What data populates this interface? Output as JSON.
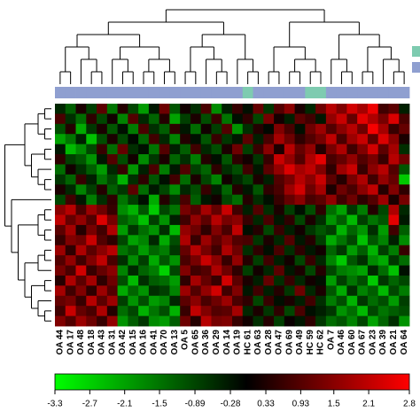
{
  "chart_data": {
    "type": "heatmap",
    "columns": [
      "OA 44",
      "OA 17",
      "OA 48",
      "OA 18",
      "OA 43",
      "OA 31",
      "OA 42",
      "OA 15",
      "OA 16",
      "OA 41",
      "OA 70",
      "OA 13",
      "OA 5",
      "OA 65",
      "OA 36",
      "OA 29",
      "OA 14",
      "OA 19",
      "HC 61",
      "OA 63",
      "OA 28",
      "OA 47",
      "OA 69",
      "OA 49",
      "HC 59",
      "HC 62",
      "OA 7",
      "OA 46",
      "OA 60",
      "OA 67",
      "OA 23",
      "OA 39",
      "OA 21",
      "OA 64"
    ],
    "annotation_colors": [
      "#8f9fd0",
      "#8f9fd0",
      "#8f9fd0",
      "#8f9fd0",
      "#8f9fd0",
      "#8f9fd0",
      "#8f9fd0",
      "#8f9fd0",
      "#8f9fd0",
      "#8f9fd0",
      "#8f9fd0",
      "#8f9fd0",
      "#8f9fd0",
      "#8f9fd0",
      "#8f9fd0",
      "#8f9fd0",
      "#8f9fd0",
      "#8f9fd0",
      "#7ecbb0",
      "#8f9fd0",
      "#8f9fd0",
      "#8f9fd0",
      "#8f9fd0",
      "#8f9fd0",
      "#7ecbb0",
      "#7ecbb0",
      "#8f9fd0",
      "#8f9fd0",
      "#8f9fd0",
      "#8f9fd0",
      "#8f9fd0",
      "#8f9fd0",
      "#8f9fd0",
      "#8f9fd0"
    ],
    "legend_colors": [
      "#7ecbb0",
      "#8f9fd0"
    ],
    "colormap": {
      "low": "#00ff00",
      "mid": "#000000",
      "high": "#ff0000"
    },
    "zlim": [
      -3.3,
      2.8
    ],
    "zticks": [
      -3.3,
      -2.7,
      -2.1,
      -1.5,
      -0.89,
      -0.28,
      0.33,
      0.93,
      1.5,
      2.1,
      2.8
    ],
    "values": [
      [
        -0.5,
        -1.2,
        0.3,
        -0.8,
        1.0,
        -1.5,
        0.4,
        -0.9,
        -2.0,
        -0.3,
        1.2,
        -1.1,
        0.2,
        -0.6,
        0.8,
        -1.8,
        -0.4,
        0.6,
        -0.2,
        1.1,
        -0.7,
        0.9,
        1.5,
        0.3,
        -0.5,
        1.2,
        2.0,
        1.4,
        2.3,
        1.8,
        2.6,
        0.7,
        1.0,
        -0.4
      ],
      [
        0.8,
        -0.6,
        -1.4,
        0.5,
        -0.9,
        0.2,
        -1.7,
        0.9,
        -0.5,
        -1.3,
        0.4,
        -2.1,
        -0.8,
        0.3,
        -1.0,
        0.6,
        -1.5,
        -0.2,
        0.5,
        -0.9,
        1.3,
        0.2,
        -0.4,
        1.0,
        0.7,
        -0.3,
        1.6,
        2.2,
        1.1,
        2.5,
        1.9,
        1.3,
        2.4,
        0.8
      ],
      [
        -1.0,
        0.4,
        -2.2,
        -0.7,
        0.3,
        -1.1,
        -0.2,
        -1.6,
        0.8,
        -0.6,
        -1.2,
        0.5,
        -0.3,
        -1.4,
        0.2,
        -0.8,
        0.9,
        -1.9,
        -0.6,
        0.4,
        -0.1,
        1.4,
        0.8,
        -0.2,
        1.2,
        1.7,
        0.9,
        1.5,
        2.0,
        1.2,
        2.7,
        1.8,
        0.6,
        1.1
      ],
      [
        -2.1,
        -1.5,
        -0.4,
        -2.5,
        -1.0,
        0.3,
        -0.9,
        -0.1,
        -1.3,
        0.7,
        -0.5,
        -1.7,
        0.4,
        -0.2,
        -1.1,
        0.6,
        -0.7,
        -0.3,
        1.0,
        -0.4,
        0.8,
        1.8,
        1.2,
        0.5,
        0.9,
        1.3,
        2.1,
        0.8,
        1.7,
        2.2,
        1.0,
        2.4,
        1.5,
        0.3
      ],
      [
        -0.3,
        -2.4,
        -1.8,
        -0.9,
        0.6,
        -1.4,
        1.1,
        -0.6,
        -0.2,
        -1.5,
        0.9,
        -0.4,
        -1.2,
        0.7,
        -0.5,
        -1.0,
        0.3,
        1.2,
        -0.8,
        0.6,
        1.5,
        0.3,
        2.0,
        1.1,
        1.6,
        0.4,
        1.3,
        1.9,
        0.7,
        1.4,
        2.3,
        1.0,
        1.8,
        -0.6
      ],
      [
        0.5,
        -0.8,
        -1.1,
        -1.9,
        -0.3,
        0.9,
        -1.0,
        0.2,
        -1.8,
        -0.7,
        0.3,
        -1.3,
        -0.6,
        -1.6,
        0.4,
        -0.2,
        -1.1,
        0.5,
        0.2,
        -0.7,
        0.6,
        2.2,
        1.6,
        0.9,
        1.9,
        2.5,
        0.8,
        1.1,
        1.6,
        0.9,
        1.3,
        0.6,
        2.0,
        1.2
      ],
      [
        -1.4,
        0.2,
        -0.6,
        -1.2,
        -2.0,
        -0.5,
        0.6,
        -1.9,
        -0.4,
        0.8,
        -1.6,
        -0.3,
        0.9,
        -0.8,
        -1.3,
        0.5,
        -0.6,
        -1.0,
        0.7,
        -0.3,
        1.0,
        1.6,
        2.4,
        1.8,
        2.1,
        1.4,
        0.5,
        1.7,
        2.2,
        0.6,
        1.5,
        2.0,
        0.9,
        -1.1
      ],
      [
        -0.7,
        -1.3,
        0.6,
        -0.4,
        -1.5,
        -0.9,
        -2.3,
        -0.6,
        0.5,
        -1.1,
        -0.2,
        0.7,
        -1.4,
        0.3,
        -0.9,
        -1.7,
        0.2,
        -0.5,
        -0.9,
        0.3,
        -0.4,
        0.9,
        1.3,
        2.0,
        1.5,
        2.2,
        1.0,
        0.4,
        1.3,
        1.9,
        0.7,
        1.6,
        1.1,
        -2.6
      ],
      [
        0.3,
        -0.5,
        -1.7,
        -0.8,
        0.4,
        -1.2,
        -0.7,
        1.0,
        -1.4,
        -0.3,
        -0.9,
        -1.8,
        -0.5,
        -1.0,
        0.6,
        -0.4,
        -1.3,
        0.4,
        -0.3,
        -1.1,
        0.5,
        0.8,
        1.7,
        2.3,
        1.2,
        1.8,
        0.3,
        1.2,
        0.8,
        1.5,
        2.1,
        0.4,
        1.4,
        0.5
      ],
      [
        -0.9,
        0.7,
        -0.3,
        -1.6,
        -0.6,
        0.5,
        -1.5,
        -0.8,
        -0.2,
        -2.2,
        0.4,
        -0.7,
        0.8,
        -1.2,
        -0.3,
        0.2,
        -0.9,
        -1.4,
        0.4,
        -0.6,
        -0.2,
        0.6,
        1.1,
        1.5,
        0.8,
        1.0,
        1.6,
        0.7,
        1.2,
        0.5,
        0.9,
        1.7,
        0.3,
        1.3
      ],
      [
        1.5,
        2.0,
        0.8,
        1.7,
        1.2,
        0.6,
        -1.8,
        -2.3,
        -1.1,
        -2.6,
        -0.9,
        -1.5,
        1.3,
        0.9,
        1.8,
        1.1,
        2.2,
        0.7,
        -0.4,
        0.9,
        -0.6,
        0.3,
        -0.8,
        -0.2,
        -1.0,
        0.5,
        -1.4,
        -2.1,
        -0.7,
        -1.6,
        0.4,
        -0.9,
        1.9,
        -0.5
      ],
      [
        2.1,
        1.1,
        1.6,
        0.9,
        2.4,
        1.3,
        -1.2,
        -1.6,
        -2.5,
        -0.8,
        -1.9,
        -0.4,
        0.7,
        1.6,
        1.0,
        2.0,
        1.3,
        1.5,
        0.6,
        -0.5,
        0.8,
        -0.3,
        0.5,
        -0.9,
        0.3,
        -0.6,
        -1.9,
        -1.2,
        -2.4,
        -0.8,
        -1.5,
        -1.1,
        2.5,
        -0.3
      ],
      [
        1.0,
        1.8,
        0.4,
        1.3,
        0.7,
        1.9,
        -2.0,
        -0.7,
        -1.4,
        -1.9,
        -0.6,
        -2.4,
        1.6,
        1.2,
        0.5,
        1.4,
        0.8,
        2.1,
        -0.2,
        0.4,
        -0.9,
        0.6,
        -0.4,
        0.2,
        -0.7,
        -1.1,
        -0.8,
        -2.3,
        -1.3,
        -1.9,
        -0.6,
        -2.0,
        0.7,
        -1.2
      ],
      [
        0.6,
        1.4,
        1.2,
        2.2,
        0.9,
        0.5,
        -0.9,
        -2.1,
        -1.7,
        -0.5,
        -2.2,
        -1.0,
        1.9,
        0.6,
        1.7,
        1.0,
        1.5,
        0.9,
        0.8,
        -0.7,
        0.3,
        -0.5,
        0.9,
        -0.3,
        0.4,
        -0.8,
        -2.2,
        -1.5,
        -0.9,
        -2.5,
        -1.1,
        -1.7,
        -0.4,
        -1.8
      ],
      [
        1.7,
        0.5,
        1.9,
        1.0,
        1.5,
        2.0,
        -1.5,
        -1.1,
        -2.0,
        -1.3,
        -1.6,
        -0.7,
        1.1,
        2.0,
        1.3,
        0.7,
        1.9,
        1.2,
        -0.6,
        0.5,
        -0.2,
        0.8,
        -0.6,
        0.5,
        -0.3,
        0.2,
        -1.3,
        -0.7,
        -2.0,
        -1.2,
        -2.3,
        -0.8,
        -1.6,
        0.6
      ],
      [
        0.9,
        1.6,
        0.7,
        1.4,
        2.1,
        0.8,
        -0.6,
        -1.8,
        -0.8,
        -2.2,
        -1.1,
        -1.9,
        0.8,
        1.3,
        2.2,
        1.5,
        0.6,
        1.6,
        0.4,
        -0.8,
        0.7,
        -0.4,
        0.2,
        -0.9,
        0.6,
        -0.5,
        -1.7,
        -2.6,
        -1.1,
        -0.6,
        -1.8,
        -2.2,
        -0.7,
        -1.4
      ],
      [
        1.3,
        0.8,
        2.3,
        0.6,
        1.1,
        1.5,
        -1.7,
        -0.5,
        -1.3,
        -1.6,
        -2.7,
        -0.9,
        1.4,
        0.7,
        0.9,
        1.9,
        1.2,
        0.5,
        -0.8,
        0.2,
        -0.5,
        1.0,
        -0.3,
        0.3,
        -0.9,
        0.4,
        -0.9,
        -1.6,
        -1.8,
        -2.1,
        -0.5,
        -1.4,
        -2.5,
        -0.2
      ],
      [
        0.4,
        1.9,
        1.0,
        1.8,
        0.5,
        1.2,
        -1.0,
        -2.4,
        -0.6,
        -1.2,
        -1.4,
        -2.0,
        0.5,
        1.8,
        1.1,
        0.6,
        2.3,
        1.0,
        0.3,
        -0.4,
        1.1,
        -0.6,
        0.6,
        -0.5,
        0.2,
        -0.2,
        -2.0,
        -0.8,
        -1.5,
        -1.0,
        -2.6,
        -0.7,
        -1.3,
        -0.9
      ],
      [
        1.8,
        0.7,
        1.4,
        0.5,
        1.7,
        0.9,
        -2.2,
        -1.3,
        -1.9,
        -0.6,
        -0.8,
        -1.7,
        1.7,
        0.9,
        1.6,
        2.3,
        0.7,
        1.4,
        -0.3,
        0.7,
        -0.4,
        0.4,
        -0.7,
        1.2,
        -0.5,
        0.3,
        -1.1,
        -2.2,
        -0.6,
        -1.7,
        -1.2,
        -2.4,
        -0.9,
        -1.6
      ],
      [
        1.1,
        1.3,
        0.6,
        2.0,
        1.0,
        1.7,
        -0.8,
        -1.9,
        -1.0,
        -2.0,
        -1.7,
        -0.5,
        1.0,
        1.5,
        0.8,
        1.2,
        1.7,
        0.8,
        0.5,
        -0.9,
        0.6,
        -0.2,
        0.3,
        -0.4,
        0.7,
        -0.6,
        -1.6,
        -1.0,
        -2.3,
        -0.7,
        -1.4,
        -1.0,
        -2.0,
        -0.8
      ],
      [
        0.7,
        2.2,
        1.1,
        0.8,
        1.9,
        0.4,
        -1.4,
        -0.9,
        -2.3,
        -1.5,
        -1.0,
        -2.3,
        0.6,
        2.1,
        1.4,
        0.9,
        1.0,
        1.8,
        -0.5,
        0.3,
        -0.7,
        0.5,
        -0.9,
        0.8,
        -0.2,
        -0.4,
        -0.7,
        -1.9,
        -1.4,
        -2.4,
        -0.9,
        -1.5,
        -1.2,
        -1.0
      ],
      [
        1.4,
        0.9,
        1.7,
        1.2,
        0.6,
        1.6,
        -1.9,
        -1.2,
        -0.7,
        -1.8,
        -2.0,
        -1.2,
        1.2,
        0.4,
        2.0,
        1.3,
        1.4,
        0.6,
        0.2,
        -0.6,
        0.4,
        -0.8,
        0.1,
        -0.3,
        0.5,
        -0.7,
        -1.4,
        -1.1,
        -1.7,
        -0.9,
        -2.1,
        -1.3,
        -0.6,
        -1.9
      ]
    ]
  }
}
